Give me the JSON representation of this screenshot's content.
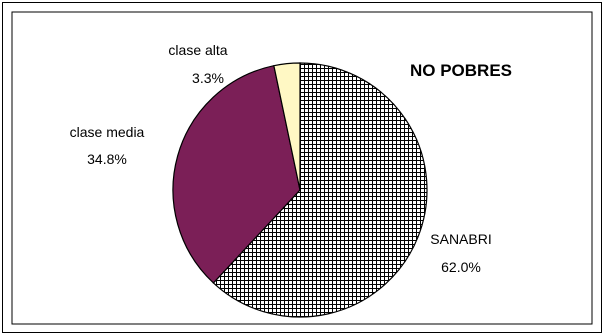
{
  "chart_data": {
    "type": "pie",
    "title": "NO POBRES",
    "slices": [
      {
        "label": "SANABRI",
        "value": 62.0,
        "value_label": "62.0%",
        "color": "#ffffff",
        "pattern": "crosshatch"
      },
      {
        "label": "clase media",
        "value": 34.8,
        "value_label": "34.8%",
        "color": "#7b1f57"
      },
      {
        "label": "clase alta",
        "value": 3.3,
        "value_label": "3.3%",
        "color": "#fff8c4"
      }
    ],
    "legend": "none",
    "data_labels": "label-and-percent"
  }
}
